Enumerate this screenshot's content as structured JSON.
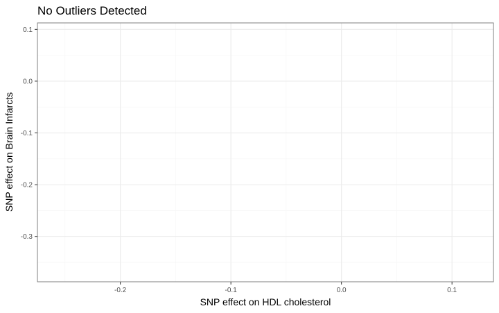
{
  "chart_data": {
    "type": "scatter",
    "title": "No Outliers Detected",
    "xlabel": "SNP effect on HDL cholesterol",
    "ylabel": "SNP effect on Brain Infarcts",
    "xlim": [
      -0.275,
      0.1375
    ],
    "ylim": [
      -0.3875,
      0.1125
    ],
    "x_ticks": [
      -0.2,
      -0.1,
      0.0,
      0.1
    ],
    "x_tick_labels": [
      "-0.2",
      "-0.1",
      "0.0",
      "0.1"
    ],
    "y_ticks": [
      0.1,
      0.0,
      -0.1,
      -0.2,
      -0.3
    ],
    "y_tick_labels": [
      "0.1",
      "0.0",
      "-0.1",
      "-0.2",
      "-0.3"
    ],
    "x_minor_ticks": [
      -0.25,
      -0.15,
      -0.05,
      0.05
    ],
    "y_minor_ticks": [
      0.05,
      -0.05,
      -0.15,
      -0.25,
      -0.35
    ],
    "grid": true,
    "points": [],
    "colors": {
      "panel_border": "#7f7f7f",
      "grid_major": "#ebebeb",
      "grid_minor": "#f5f5f5",
      "tick": "#333333",
      "tick_label": "#4d4d4d",
      "text": "#000000"
    }
  }
}
